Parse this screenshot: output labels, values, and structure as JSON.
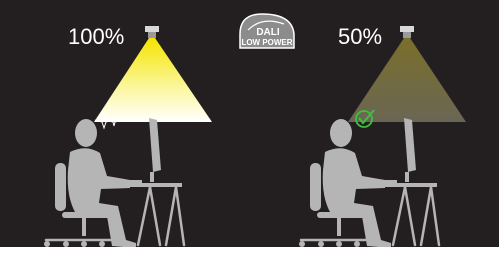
{
  "scenes": [
    {
      "label": "100%"
    },
    {
      "label": "50%"
    }
  ],
  "badge": {
    "line1": "DALI",
    "line2": "LOW POWER"
  }
}
